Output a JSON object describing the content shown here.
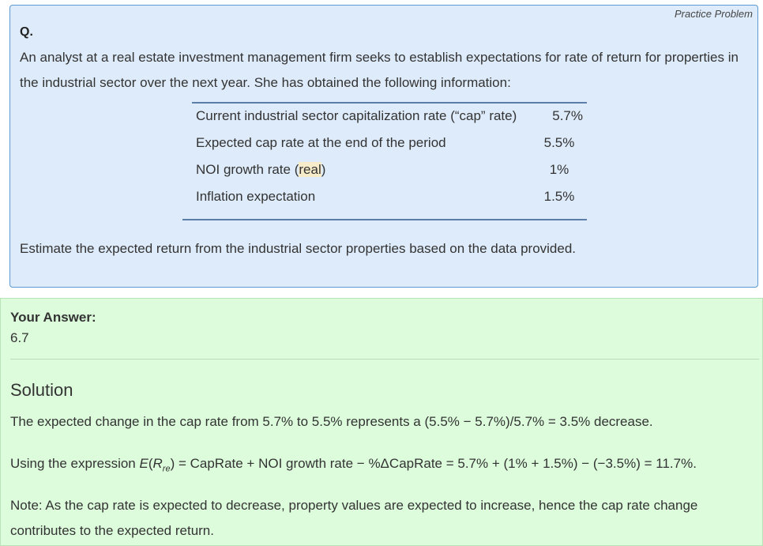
{
  "question": {
    "badge": "Practice Problem",
    "label": "Q.",
    "text": "An analyst at a real estate investment management firm seeks to establish expectations for rate of return for properties in the industrial sector over the next year. She has obtained the following information:",
    "table": [
      {
        "label": "Current industrial sector capitalization rate (“cap” rate)",
        "value": "5.7%"
      },
      {
        "label": "Expected cap rate at the end of the period",
        "value": "5.5%"
      },
      {
        "label_pre": "NOI growth rate (",
        "label_hl": "real",
        "label_post": ")",
        "value": "1%"
      },
      {
        "label": "Inflation expectation",
        "value": "1.5%"
      }
    ],
    "task": "Estimate the expected return from the industrial sector properties based on the data provided."
  },
  "answer": {
    "label": "Your Answer:",
    "value": "6.7"
  },
  "solution": {
    "title": "Solution",
    "p1": "The expected change in the cap rate from 5.7% to 5.5% represents a (5.5% − 5.7%)/5.7% = 3.5% decrease.",
    "p2_pre": "Using the expression ",
    "p2_E": "E",
    "p2_R": "R",
    "p2_sub": "re",
    "p2_post": " = CapRate + NOI growth rate − %ΔCapRate = 5.7% + (1% + 1.5%) − (−3.5%) = 11.7%.",
    "p3": "Note: As the cap rate is expected to decrease, property values are expected to increase, hence the cap rate change contributes to the expected return."
  }
}
